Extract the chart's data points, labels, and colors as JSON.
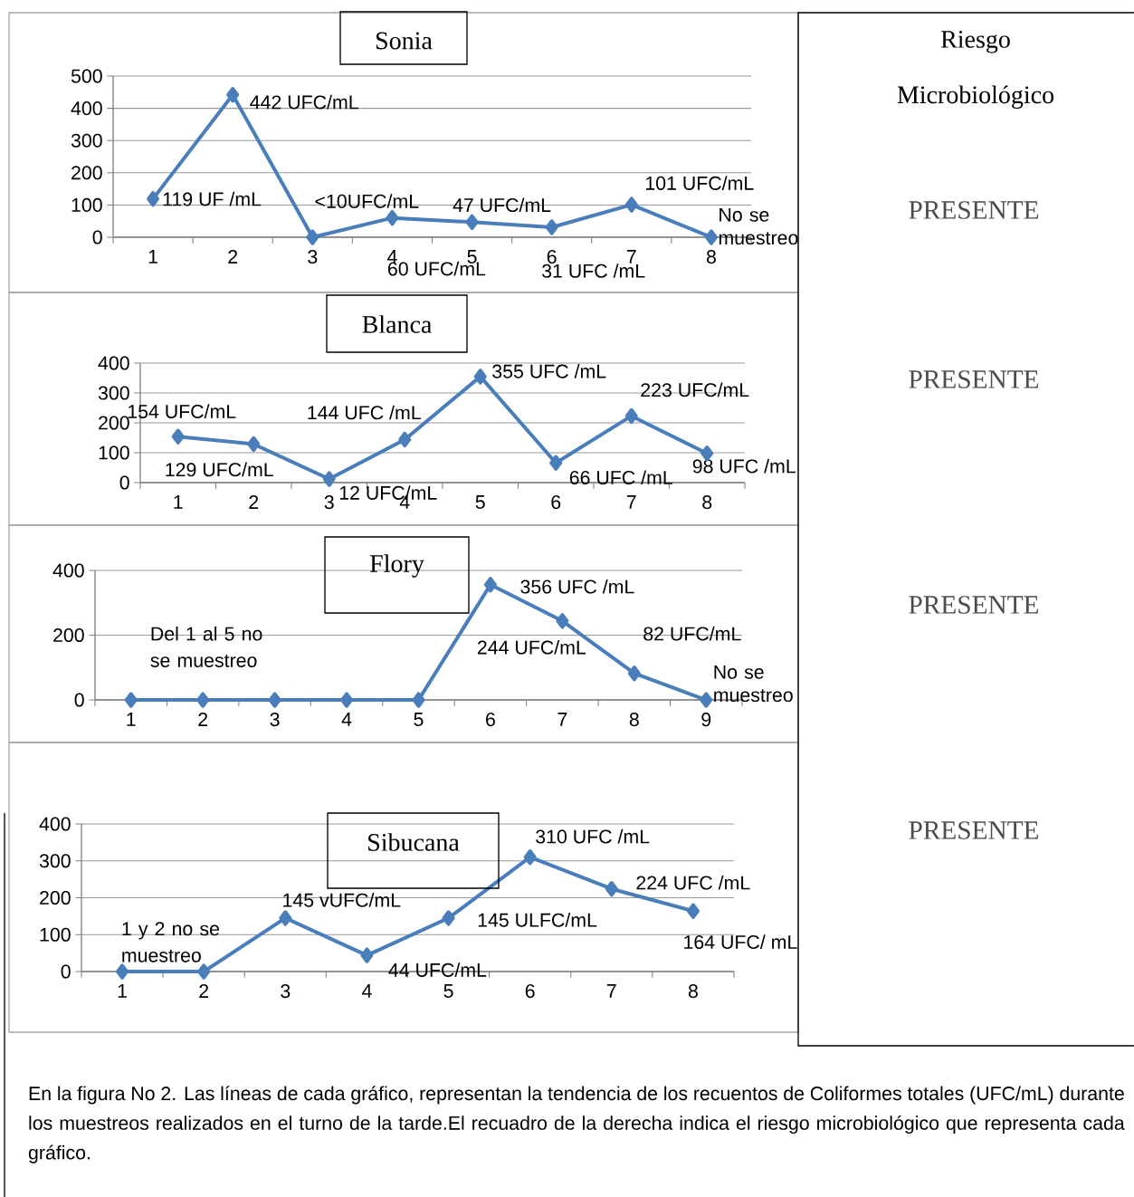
{
  "chart_data": [
    {
      "type": "line",
      "title": "Sonia",
      "categories": [
        "1",
        "2",
        "3",
        "4",
        "5",
        "6",
        "7",
        "8"
      ],
      "values": [
        119,
        442,
        0,
        60,
        47,
        31,
        101,
        0
      ],
      "value_labels": [
        "119 UF /mL",
        "442 UFC/mL",
        "<10UFC/mL",
        "60 UFC/mL",
        "47 UFC/mL",
        "31 UFC /mL",
        "101 UFC/mL",
        "No se muestreo"
      ],
      "color": "#4a7ebb",
      "marker": "diamond",
      "line_style": "solid",
      "ylim": [
        0,
        500
      ],
      "yticks": [
        0,
        100,
        200,
        300,
        400,
        500
      ],
      "grid": "y"
    },
    {
      "type": "line",
      "title": "Blanca",
      "categories": [
        "1",
        "2",
        "3",
        "4",
        "5",
        "6",
        "7",
        "8"
      ],
      "values": [
        154,
        129,
        12,
        144,
        355,
        66,
        223,
        98
      ],
      "value_labels": [
        "154 UFC/mL",
        "129 UFC/mL",
        "12 UFC/mL",
        "144 UFC /mL",
        "355 UFC /mL",
        "66 UFC /mL",
        "223 UFC/mL",
        "98 UFC /mL"
      ],
      "color": "#4a7ebb",
      "marker": "diamond",
      "line_style": "solid",
      "ylim": [
        0,
        400
      ],
      "yticks": [
        0,
        100,
        200,
        300,
        400
      ],
      "grid": "y"
    },
    {
      "type": "line",
      "title": "Flory",
      "categories": [
        "1",
        "2",
        "3",
        "4",
        "5",
        "6",
        "7",
        "8",
        "9"
      ],
      "values": [
        0,
        0,
        0,
        0,
        0,
        356,
        244,
        82,
        0
      ],
      "value_labels": [
        null,
        null,
        null,
        null,
        null,
        "356 UFC /mL",
        "244 UFC/mL",
        "82 UFC/mL",
        "No se muestreo"
      ],
      "annotations": [
        "Del 1 al 5 no se muestreo"
      ],
      "color": "#4a7ebb",
      "marker": "diamond",
      "line_style": "solid",
      "ylim": [
        0,
        400
      ],
      "yticks": [
        0,
        200,
        400
      ],
      "grid": "y"
    },
    {
      "type": "line",
      "title": "Sibucana",
      "categories": [
        "1",
        "2",
        "3",
        "4",
        "5",
        "6",
        "7",
        "8"
      ],
      "values": [
        0,
        0,
        145,
        44,
        145,
        310,
        224,
        164
      ],
      "value_labels": [
        null,
        null,
        "145 vUFC/mL",
        "44 UFC/mL",
        "145 ULFC/mL",
        "310 UFC /mL",
        "224 UFC /mL",
        "164 UFC/ mL"
      ],
      "annotations": [
        "1 y 2 no se muestreo"
      ],
      "color": "#4a7ebb",
      "marker": "diamond",
      "line_style": "solid",
      "ylim": [
        0,
        400
      ],
      "yticks": [
        0,
        100,
        200,
        300,
        400
      ],
      "grid": "y"
    },
    {
      "type": "other",
      "title": "Riesgo Microbiológico",
      "annotations": [
        "PRESENTE",
        "PRESENTE",
        "PRESENTE",
        "PRESENTE",
        "En la figura No 2. Las líneas  de cada gráfico, representan la tendencia de los recuentos de Coliformes totales (UFC/mL) durante los muestreos realizados en el turno de la tarde.El recuadro de la derecha indica el riesgo microbiológico que representa cada gráfico."
      ]
    }
  ]
}
